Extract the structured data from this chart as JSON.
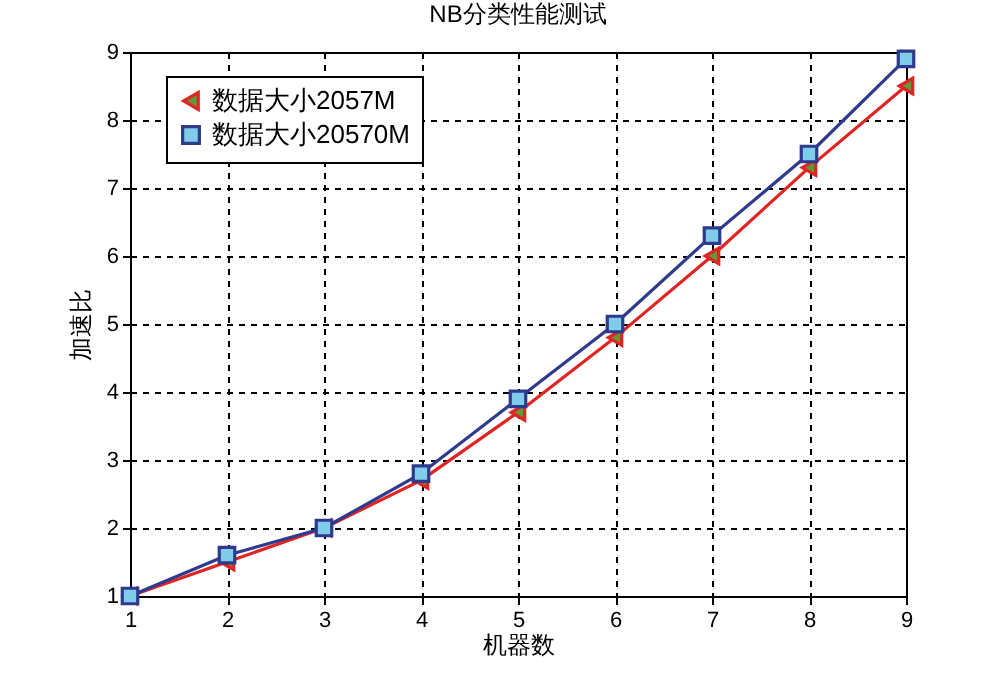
{
  "chart_data": {
    "type": "line",
    "title": "NB分类性能测试",
    "xlabel": "机器数",
    "ylabel": "加速比",
    "x": [
      1,
      2,
      3,
      4,
      5,
      6,
      7,
      8,
      9
    ],
    "series": [
      {
        "name": "数据大小2057M",
        "color": "#e02424",
        "marker": "triangle",
        "values": [
          1,
          1.5,
          2,
          2.7,
          3.7,
          4.8,
          6.0,
          7.3,
          8.5
        ]
      },
      {
        "name": "数据大小20570M",
        "color": "#2e3a8c",
        "marker": "square",
        "values": [
          1,
          1.6,
          2,
          2.8,
          3.9,
          5.0,
          6.3,
          7.5,
          8.9
        ]
      }
    ],
    "xlim": [
      1,
      9
    ],
    "xticks": [
      1,
      2,
      3,
      4,
      5,
      6,
      7,
      8,
      9
    ],
    "ylim": [
      1,
      9
    ],
    "yticks": [
      1,
      2,
      3,
      4,
      5,
      6,
      7,
      8,
      9
    ],
    "grid": true,
    "legend": "top left",
    "line_style": "solid"
  }
}
